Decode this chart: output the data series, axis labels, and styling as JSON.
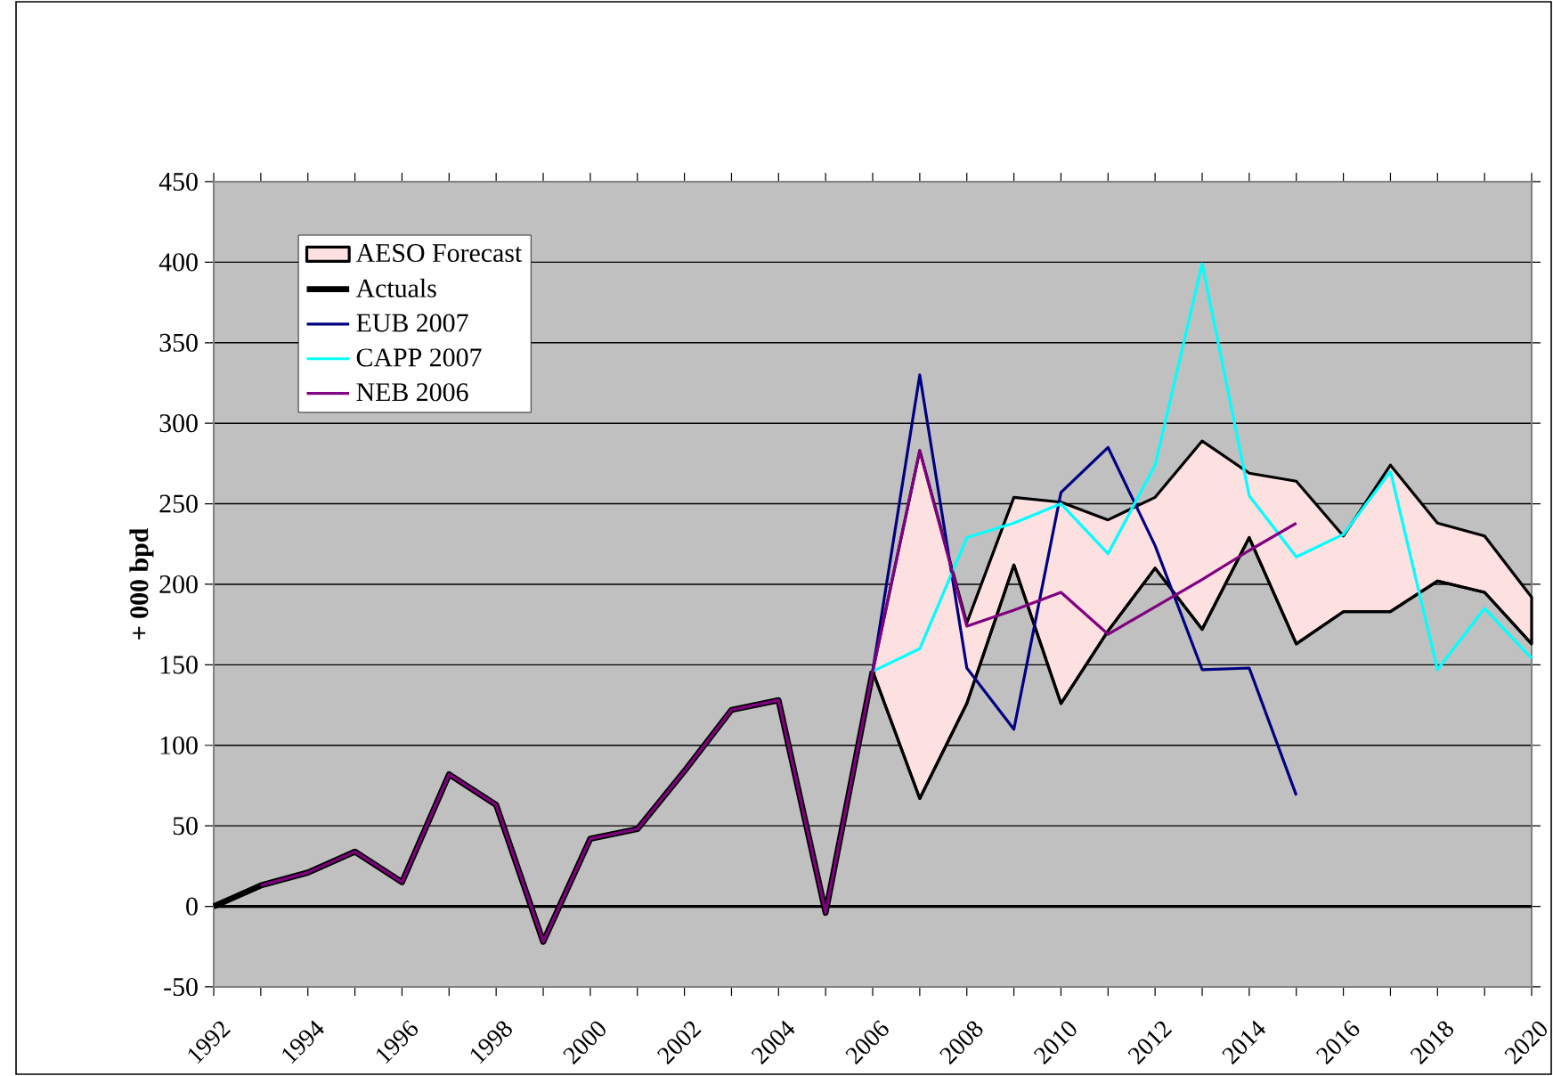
{
  "chart_data": {
    "type": "line",
    "ylabel": "+ 000 bpd",
    "categories": [
      "1992",
      null,
      "1994",
      null,
      "1996",
      null,
      "1998",
      null,
      "2000",
      null,
      "2002",
      null,
      "2004",
      null,
      "2006",
      null,
      "2008",
      null,
      "2010",
      null,
      "2012",
      null,
      "2014",
      null,
      "2016",
      null,
      "2018",
      null,
      "2020"
    ],
    "ylim": [
      -50,
      450
    ],
    "yticks": [
      -50,
      0,
      50,
      100,
      150,
      200,
      250,
      300,
      350,
      400,
      450
    ],
    "grid": "y",
    "legend": "top left",
    "series": [
      {
        "name": "AESO Forecast",
        "type": "area",
        "color": "#fde0e0",
        "values": [
          null,
          null,
          null,
          null,
          null,
          null,
          null,
          null,
          null,
          null,
          null,
          null,
          null,
          null,
          146,
          283,
          176,
          254,
          251,
          240,
          254,
          289,
          269,
          264,
          230,
          274,
          238,
          230,
          192
        ]
      },
      {
        "color": "#000000",
        "values": [
          null,
          null,
          null,
          null,
          null,
          null,
          null,
          null,
          null,
          null,
          null,
          null,
          null,
          null,
          146,
          67,
          126,
          212,
          126,
          171,
          210,
          172,
          229,
          163,
          183,
          183,
          202,
          195,
          163
        ]
      },
      {
        "name": "Actuals",
        "color": "#000000",
        "values": [
          0,
          13,
          21,
          34,
          15,
          82,
          63,
          -22,
          42,
          48,
          84,
          122,
          128,
          -4,
          146,
          null,
          null,
          null,
          null,
          null,
          null,
          null,
          null,
          null,
          null,
          null,
          null,
          null,
          null
        ]
      },
      {
        "name": "EUB 2007",
        "color": "#000080",
        "values": [
          null,
          null,
          null,
          null,
          null,
          null,
          null,
          null,
          null,
          null,
          null,
          null,
          null,
          null,
          146,
          330,
          148,
          110,
          257,
          285,
          224,
          147,
          148,
          69,
          null,
          null,
          null,
          null,
          null
        ]
      },
      {
        "name": "CAPP 2007",
        "color": "#00ffff",
        "values": [
          null,
          null,
          null,
          null,
          null,
          null,
          null,
          null,
          null,
          null,
          null,
          null,
          null,
          null,
          146,
          160,
          229,
          238,
          250,
          219,
          274,
          399,
          255,
          217,
          231,
          270,
          147,
          185,
          154
        ]
      },
      {
        "name": "NEB 2006",
        "color": "#800080",
        "values": [
          null,
          13,
          21,
          34,
          15,
          82,
          63,
          -22,
          42,
          48,
          84,
          122,
          128,
          -4,
          146,
          283,
          174,
          184,
          195,
          169,
          186,
          203,
          221,
          238,
          null,
          null,
          null,
          null,
          null
        ]
      }
    ]
  }
}
